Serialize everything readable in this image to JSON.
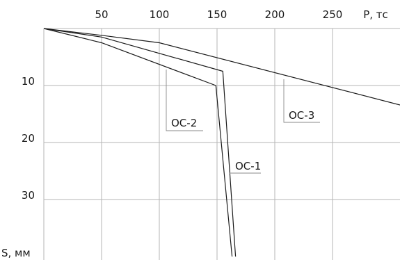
{
  "chart_data": {
    "type": "line",
    "x_axis_label": "P, тс",
    "y_axis_label": "S, мм",
    "x_ticks": [
      50,
      100,
      150,
      200,
      250
    ],
    "y_ticks": [
      10,
      20,
      30
    ],
    "xlim": [
      0,
      310
    ],
    "ylim": [
      0,
      40
    ],
    "grid": true,
    "y_inverted": true,
    "series": [
      {
        "name": "OC-1",
        "x": [
          0,
          50,
          155,
          166
        ],
        "y": [
          0,
          1.5,
          7.5,
          40
        ]
      },
      {
        "name": "OC-2",
        "x": [
          0,
          50,
          149,
          163
        ],
        "y": [
          0,
          2.5,
          10,
          40
        ]
      },
      {
        "name": "OC-3",
        "x": [
          0,
          50,
          100,
          310
        ],
        "y": [
          0,
          1.2,
          2.5,
          13.5
        ]
      }
    ]
  }
}
